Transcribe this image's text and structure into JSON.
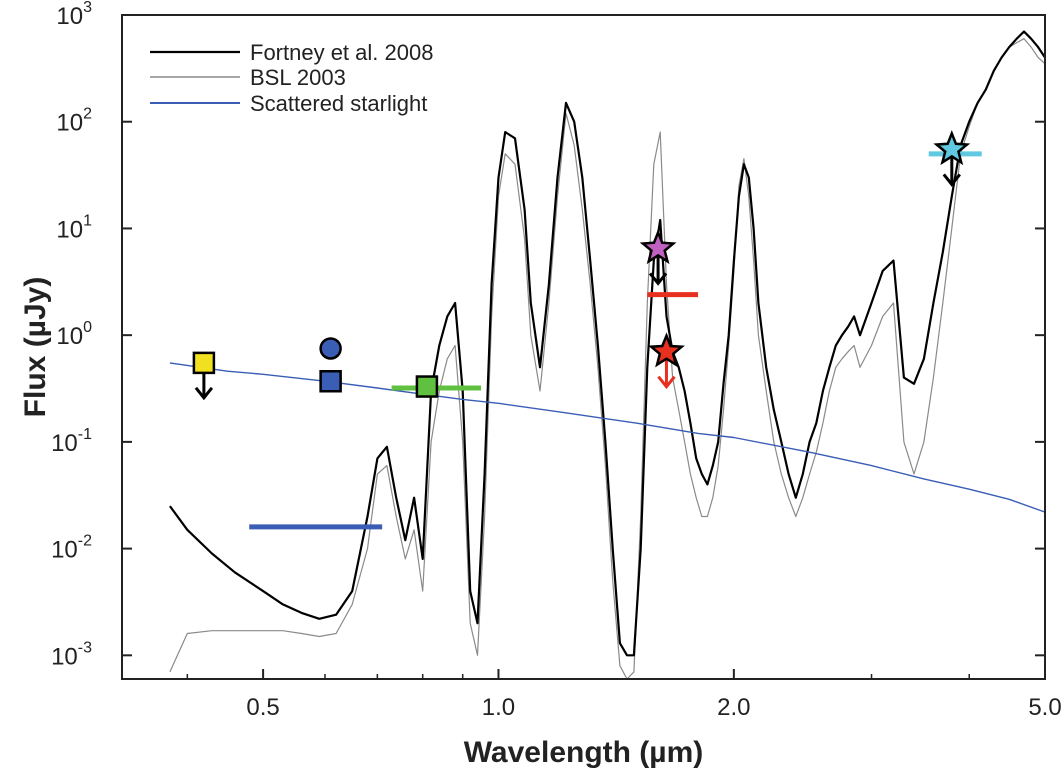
{
  "chart_data": {
    "type": "line",
    "title": "",
    "xlabel": "Wavelength (µm)",
    "ylabel": "Flux (µJy)",
    "x_scale": "log",
    "y_scale": "log",
    "xlim": [
      0.33,
      5.0
    ],
    "ylim": [
      0.0006,
      1000
    ],
    "grid": false,
    "legend_position": "top-left",
    "x_ticks": [
      {
        "value": 0.5,
        "label": "0.5"
      },
      {
        "value": 1.0,
        "label": "1.0"
      },
      {
        "value": 2.0,
        "label": "2.0"
      },
      {
        "value": 5.0,
        "label": "5.0"
      }
    ],
    "y_ticks": [
      {
        "value": 0.001,
        "base": "10",
        "exp": "-3"
      },
      {
        "value": 0.01,
        "base": "10",
        "exp": "-2"
      },
      {
        "value": 0.1,
        "base": "10",
        "exp": "-1"
      },
      {
        "value": 1,
        "base": "10",
        "exp": "0"
      },
      {
        "value": 10,
        "base": "10",
        "exp": "1"
      },
      {
        "value": 100,
        "base": "10",
        "exp": "2"
      },
      {
        "value": 1000,
        "base": "10",
        "exp": "3"
      }
    ],
    "series": [
      {
        "name": "Fortney et al. 2008",
        "color": "#000000",
        "x": [
          0.38,
          0.4,
          0.43,
          0.46,
          0.5,
          0.53,
          0.56,
          0.59,
          0.62,
          0.65,
          0.68,
          0.7,
          0.72,
          0.74,
          0.76,
          0.78,
          0.8,
          0.82,
          0.84,
          0.86,
          0.88,
          0.9,
          0.92,
          0.94,
          0.96,
          0.98,
          1.0,
          1.02,
          1.05,
          1.08,
          1.1,
          1.13,
          1.16,
          1.19,
          1.22,
          1.25,
          1.28,
          1.31,
          1.34,
          1.37,
          1.4,
          1.43,
          1.46,
          1.49,
          1.52,
          1.55,
          1.58,
          1.61,
          1.64,
          1.67,
          1.7,
          1.73,
          1.76,
          1.79,
          1.82,
          1.85,
          1.88,
          1.91,
          1.94,
          1.97,
          2.0,
          2.03,
          2.06,
          2.09,
          2.12,
          2.15,
          2.2,
          2.25,
          2.3,
          2.35,
          2.4,
          2.45,
          2.5,
          2.55,
          2.6,
          2.65,
          2.7,
          2.75,
          2.8,
          2.85,
          2.9,
          3.0,
          3.1,
          3.2,
          3.3,
          3.4,
          3.5,
          3.6,
          3.7,
          3.8,
          3.9,
          4.0,
          4.1,
          4.2,
          4.3,
          4.4,
          4.5,
          4.6,
          4.7,
          4.8,
          4.9,
          5.0
        ],
        "values": [
          0.025,
          0.015,
          0.009,
          0.006,
          0.004,
          0.003,
          0.0025,
          0.0022,
          0.0024,
          0.004,
          0.02,
          0.07,
          0.09,
          0.03,
          0.012,
          0.03,
          0.008,
          0.3,
          0.8,
          1.5,
          2.0,
          0.3,
          0.004,
          0.002,
          0.05,
          3.0,
          30,
          80,
          70,
          15,
          2.0,
          0.5,
          3.0,
          30,
          150,
          100,
          30,
          5.0,
          0.8,
          0.1,
          0.01,
          0.0013,
          0.001,
          0.001,
          0.01,
          0.5,
          5.0,
          12,
          1.5,
          0.7,
          0.5,
          0.3,
          0.15,
          0.07,
          0.05,
          0.04,
          0.06,
          0.1,
          0.35,
          1.0,
          5.0,
          20,
          40,
          30,
          10,
          2.0,
          0.5,
          0.2,
          0.1,
          0.05,
          0.03,
          0.05,
          0.1,
          0.15,
          0.3,
          0.5,
          0.8,
          1.0,
          1.2,
          1.5,
          1.0,
          2.0,
          4.0,
          5.0,
          0.4,
          0.35,
          0.6,
          2.0,
          6.0,
          20,
          60,
          100,
          150,
          200,
          300,
          400,
          500,
          600,
          700,
          600,
          500,
          400
        ]
      },
      {
        "name": "BSL 2003",
        "color": "#8a8a8a",
        "x": [
          0.38,
          0.4,
          0.43,
          0.46,
          0.5,
          0.53,
          0.56,
          0.59,
          0.62,
          0.65,
          0.68,
          0.7,
          0.72,
          0.74,
          0.76,
          0.78,
          0.8,
          0.82,
          0.84,
          0.86,
          0.88,
          0.9,
          0.92,
          0.94,
          0.96,
          0.98,
          1.0,
          1.02,
          1.05,
          1.08,
          1.1,
          1.13,
          1.16,
          1.19,
          1.22,
          1.25,
          1.28,
          1.31,
          1.34,
          1.37,
          1.4,
          1.43,
          1.46,
          1.49,
          1.52,
          1.55,
          1.58,
          1.61,
          1.64,
          1.67,
          1.7,
          1.73,
          1.76,
          1.79,
          1.82,
          1.85,
          1.88,
          1.91,
          1.94,
          1.97,
          2.0,
          2.03,
          2.06,
          2.09,
          2.12,
          2.15,
          2.2,
          2.25,
          2.3,
          2.35,
          2.4,
          2.45,
          2.5,
          2.55,
          2.6,
          2.65,
          2.7,
          2.75,
          2.8,
          2.85,
          2.9,
          3.0,
          3.1,
          3.2,
          3.3,
          3.4,
          3.5,
          3.6,
          3.7,
          3.8,
          3.9,
          4.0,
          4.1,
          4.2,
          4.3,
          4.4,
          4.5,
          4.6,
          4.7,
          4.8,
          4.9,
          5.0
        ],
        "values": [
          0.0007,
          0.0016,
          0.0017,
          0.0017,
          0.0017,
          0.0017,
          0.0016,
          0.0015,
          0.0016,
          0.003,
          0.01,
          0.05,
          0.06,
          0.02,
          0.008,
          0.015,
          0.004,
          0.1,
          0.3,
          0.6,
          0.8,
          0.1,
          0.002,
          0.001,
          0.02,
          1.5,
          20,
          50,
          40,
          8,
          1.0,
          0.3,
          2.0,
          20,
          120,
          60,
          15,
          3.0,
          0.5,
          0.06,
          0.005,
          0.0008,
          0.0006,
          0.0007,
          0.02,
          2.0,
          40,
          80,
          3.0,
          0.4,
          0.2,
          0.1,
          0.05,
          0.03,
          0.02,
          0.02,
          0.03,
          0.06,
          0.2,
          0.8,
          4.0,
          25,
          45,
          20,
          5.0,
          1.0,
          0.3,
          0.1,
          0.05,
          0.03,
          0.02,
          0.03,
          0.05,
          0.08,
          0.15,
          0.3,
          0.5,
          0.6,
          0.7,
          0.8,
          0.5,
          0.8,
          1.5,
          2.0,
          0.1,
          0.05,
          0.1,
          0.4,
          2.0,
          10,
          50,
          90,
          150,
          200,
          300,
          400,
          500,
          550,
          600,
          500,
          400,
          350
        ]
      },
      {
        "name": "Scattered starlight",
        "color": "#3a5db5",
        "x": [
          0.38,
          0.45,
          0.5,
          0.6,
          0.7,
          0.8,
          0.9,
          1.0,
          1.2,
          1.5,
          1.8,
          2.0,
          2.5,
          3.0,
          3.5,
          4.0,
          4.5,
          5.0
        ],
        "values": [
          0.55,
          0.46,
          0.43,
          0.37,
          0.32,
          0.28,
          0.25,
          0.23,
          0.19,
          0.15,
          0.12,
          0.11,
          0.08,
          0.06,
          0.045,
          0.036,
          0.029,
          0.022
        ]
      }
    ],
    "observations": [
      {
        "type": "upper_limit_square",
        "x": 0.42,
        "y": 0.55,
        "color": "#f0e020",
        "arrow_color": "#000000"
      },
      {
        "type": "circle",
        "x": 0.61,
        "y": 0.75,
        "color": "#3a5db5"
      },
      {
        "type": "square",
        "x": 0.61,
        "y": 0.37,
        "color": "#3a5db5"
      },
      {
        "type": "square",
        "x": 0.81,
        "y": 0.33,
        "color": "#60c040"
      },
      {
        "type": "hbar",
        "x1": 0.48,
        "x2": 0.71,
        "y": 0.016,
        "color": "#3a5db5"
      },
      {
        "type": "hbar",
        "x1": 0.73,
        "x2": 0.95,
        "y": 0.32,
        "color": "#60c040"
      },
      {
        "type": "upper_limit_star",
        "x": 1.6,
        "y": 6.5,
        "color": "#c060c0",
        "arrow_color": "#000000"
      },
      {
        "type": "hbar",
        "x1": 1.58,
        "x2": 1.62,
        "y": 6.0,
        "color": "#c060c0"
      },
      {
        "type": "hbar",
        "x1": 1.55,
        "x2": 1.8,
        "y": 2.4,
        "color": "#e83020"
      },
      {
        "type": "upper_limit_star",
        "x": 1.64,
        "y": 0.7,
        "color": "#e83020",
        "arrow_color": "#e83020"
      },
      {
        "type": "hbar",
        "x1": 3.55,
        "x2": 4.15,
        "y": 50,
        "color": "#60c8e0"
      },
      {
        "type": "upper_limit_star",
        "x": 3.8,
        "y": 55,
        "color": "#60c8e0",
        "arrow_color": "#000000"
      }
    ]
  }
}
